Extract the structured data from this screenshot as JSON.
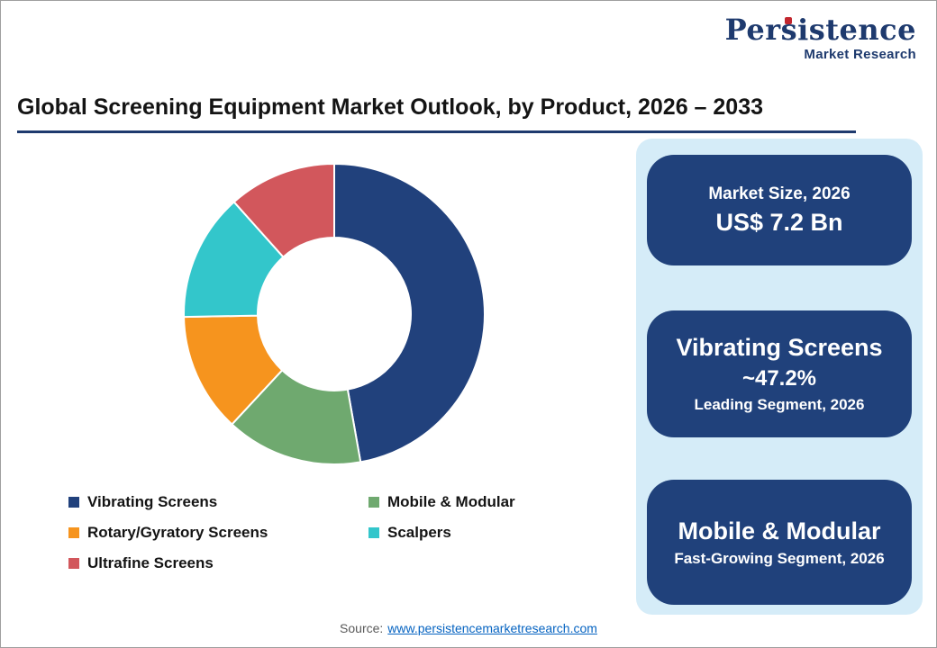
{
  "header": {
    "title": "Global Screening Equipment Market Outlook, by Product, 2026 – 2033"
  },
  "logo": {
    "wordmark": "Persistence",
    "subtitle": "Market Research",
    "accent_color": "#C2262E",
    "text_color": "#1E3A6E"
  },
  "chart_data": {
    "type": "pie",
    "subtype": "donut",
    "title": "Global Screening Equipment Market Outlook, by Product, 2026 – 2033",
    "start_angle_deg": 0,
    "direction": "clockwise",
    "inner_radius_ratio": 0.51,
    "legend_position": "bottom-left",
    "slices": [
      {
        "label": "Vibrating Screens",
        "value": 47.2,
        "color": "#21417C"
      },
      {
        "label": "Mobile & Modular",
        "value": 14.7,
        "color": "#6FA96F"
      },
      {
        "label": "Rotary/Gyratory Screens",
        "value": 12.8,
        "color": "#F6941E"
      },
      {
        "label": "Scalpers",
        "value": 13.7,
        "color": "#33C6CB"
      },
      {
        "label": "Ultrafine Screens",
        "value": 11.6,
        "color": "#D2575C"
      }
    ]
  },
  "highlights": {
    "panel_bg": "#D5ECF8",
    "card_bg": "#20417B",
    "market_size_card": {
      "label": "Market Size, 2026",
      "value": "US$ 7.2 Bn"
    },
    "leading_card": {
      "segment": "Vibrating Screens",
      "share": "~47.2%",
      "caption": "Leading Segment, 2026"
    },
    "fast_growing_card": {
      "segment": "Mobile & Modular",
      "caption": "Fast-Growing Segment, 2026"
    }
  },
  "footer": {
    "source_label": "Source:",
    "source_link": "www.persistencemarketresearch.com"
  }
}
